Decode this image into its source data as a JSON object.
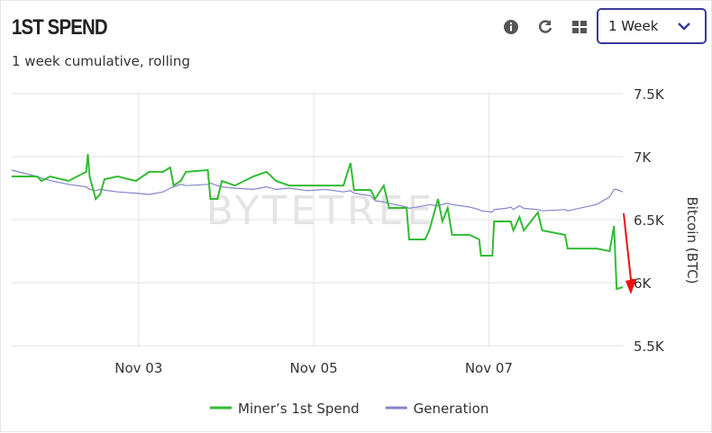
{
  "header": {
    "title": "1ST SPEND",
    "subtitle": "1 week cumulative, rolling",
    "period": "1 Week"
  },
  "chart_data": {
    "type": "line",
    "watermark": "BYTETREE",
    "y_label": "Bitcoin (BTC)",
    "x": [
      1.55,
      1.84,
      1.89,
      1.99,
      2.2,
      2.4,
      2.42,
      2.44,
      2.51,
      2.56,
      2.61,
      2.76,
      2.97,
      3.12,
      3.28,
      3.36,
      3.4,
      3.48,
      3.54,
      3.79,
      3.82,
      3.9,
      3.95,
      4.1,
      4.31,
      4.46,
      4.57,
      4.72,
      4.93,
      5.13,
      5.34,
      5.42,
      5.46,
      5.55,
      5.65,
      5.7,
      5.8,
      5.86,
      6.06,
      6.09,
      6.27,
      6.32,
      6.42,
      6.47,
      6.53,
      6.58,
      6.78,
      6.89,
      6.91,
      7.04,
      7.06,
      7.2,
      7.25,
      7.28,
      7.35,
      7.4,
      7.56,
      7.61,
      7.87,
      7.9,
      8.23,
      8.38,
      8.43,
      8.46,
      8.53
    ],
    "series": [
      {
        "name": "Miner’s 1st Spend",
        "color": "#33bb33",
        "values": [
          6843,
          6843,
          6807,
          6843,
          6807,
          6879,
          7021,
          6843,
          6664,
          6700,
          6821,
          6843,
          6807,
          6879,
          6879,
          6914,
          6771,
          6807,
          6879,
          6893,
          6664,
          6664,
          6807,
          6771,
          6843,
          6879,
          6807,
          6771,
          6771,
          6771,
          6771,
          6950,
          6736,
          6736,
          6736,
          6664,
          6771,
          6593,
          6593,
          6343,
          6343,
          6414,
          6664,
          6486,
          6593,
          6379,
          6379,
          6343,
          6214,
          6214,
          6486,
          6486,
          6486,
          6414,
          6521,
          6414,
          6557,
          6414,
          6379,
          6271,
          6271,
          6250,
          6450,
          5950,
          5964
        ]
      },
      {
        "name": "Generation",
        "color": "#8585cc",
        "values": [
          6893,
          6843,
          6830,
          6810,
          6780,
          6760,
          6750,
          6740,
          6730,
          6740,
          6735,
          6720,
          6710,
          6700,
          6720,
          6750,
          6760,
          6780,
          6770,
          6780,
          6790,
          6770,
          6760,
          6750,
          6740,
          6760,
          6740,
          6750,
          6730,
          6740,
          6720,
          6730,
          6710,
          6700,
          6690,
          6650,
          6640,
          6630,
          6600,
          6590,
          6610,
          6620,
          6610,
          6620,
          6630,
          6620,
          6600,
          6580,
          6570,
          6560,
          6580,
          6590,
          6600,
          6580,
          6610,
          6590,
          6580,
          6570,
          6580,
          6570,
          6620,
          6680,
          6740,
          6740,
          6720
        ]
      }
    ],
    "xlim": [
      1.55,
      8.53
    ],
    "xticks": [
      {
        "value": 3,
        "label": "Nov 03"
      },
      {
        "value": 5,
        "label": "Nov 05"
      },
      {
        "value": 7,
        "label": "Nov 07"
      }
    ],
    "ylim": [
      5500,
      7500
    ],
    "yticks": [
      {
        "value": 5500,
        "label": "5.5K"
      },
      {
        "value": 6000,
        "label": "6K"
      },
      {
        "value": 6500,
        "label": "6.5K"
      },
      {
        "value": 7000,
        "label": "7K"
      },
      {
        "value": 7500,
        "label": "7.5K"
      }
    ],
    "grid": true
  }
}
